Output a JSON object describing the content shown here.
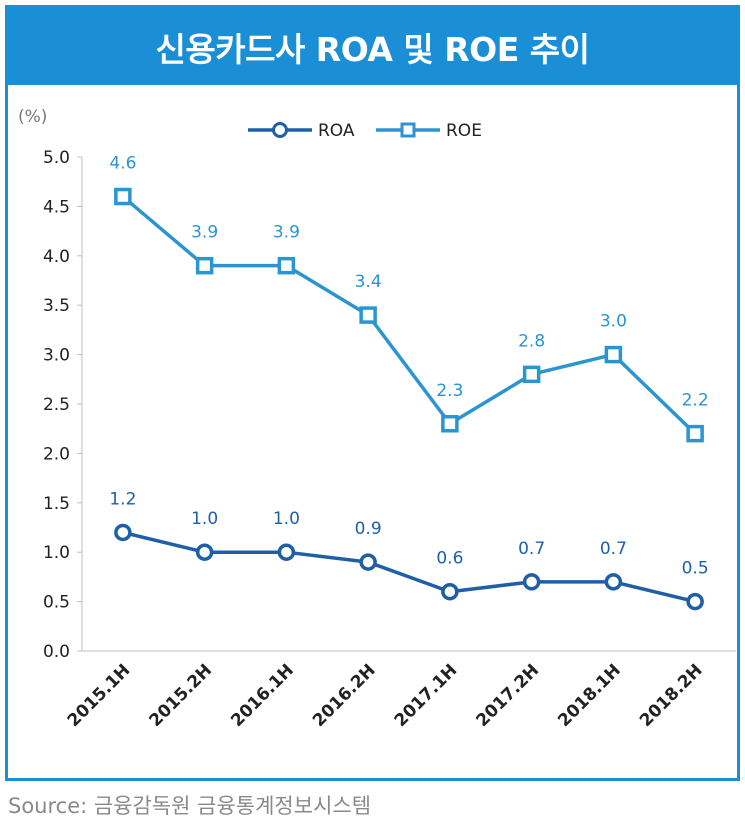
{
  "header": {
    "title": "신용카드사 ROA 및 ROE 추이"
  },
  "source": "Source: 금융감독원 금융통계정보시스템",
  "colors": {
    "accent": "#1b8fd6",
    "roa": "#1f5fa8",
    "roe": "#2a95d0"
  },
  "chart_data": {
    "type": "line",
    "title": "신용카드사 ROA 및 ROE 추이",
    "unit_label": "(%)",
    "categories": [
      "2015.1H",
      "2015.2H",
      "2016.1H",
      "2016.2H",
      "2017.1H",
      "2017.2H",
      "2018.1H",
      "2018.2H"
    ],
    "series": [
      {
        "name": "ROA",
        "marker": "circle",
        "values": [
          1.2,
          1.0,
          1.0,
          0.9,
          0.6,
          0.7,
          0.7,
          0.5
        ],
        "labels": [
          "1.2",
          "1.0",
          "1.0",
          "0.9",
          "0.6",
          "0.7",
          "0.7",
          "0.5"
        ]
      },
      {
        "name": "ROE",
        "marker": "square",
        "values": [
          4.6,
          3.9,
          3.9,
          3.4,
          2.3,
          2.8,
          3.0,
          2.2
        ],
        "labels": [
          "4.6",
          "3.9",
          "3.9",
          "3.4",
          "2.3",
          "2.8",
          "3.0",
          "2.2"
        ]
      }
    ],
    "ylim": [
      0,
      5
    ],
    "yticks": [
      "0.0",
      "0.5",
      "1.0",
      "1.5",
      "2.0",
      "2.5",
      "3.0",
      "3.5",
      "4.0",
      "4.5",
      "5.0"
    ],
    "legend_position": "top-center",
    "grid": false
  }
}
